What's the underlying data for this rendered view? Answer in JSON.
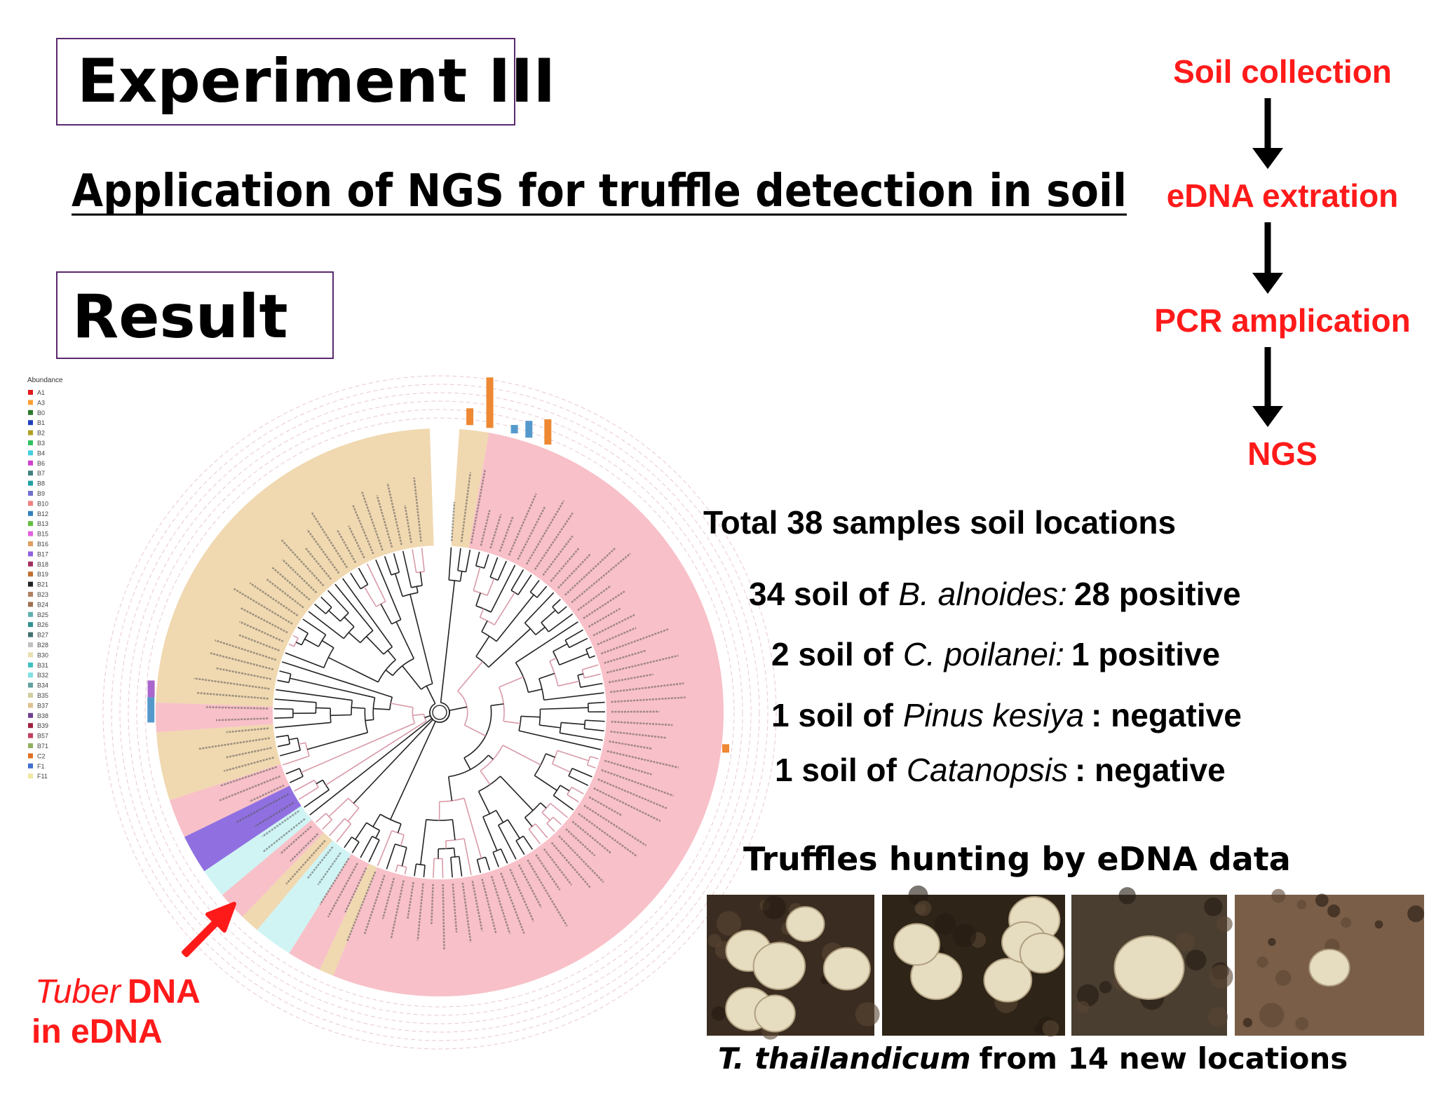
{
  "header": {
    "title": "Experiment III",
    "subtitle": "Application of NGS for truffle detection in soil",
    "result": "Result"
  },
  "workflow": {
    "steps": [
      "Soil collection",
      "eDNA extration",
      "PCR amplication",
      "NGS"
    ]
  },
  "summary": {
    "total": "Total 38 samples soil locations",
    "items": [
      {
        "prefix": "34 soil of",
        "species": "B. alnoides:",
        "suffix": "28 positive"
      },
      {
        "prefix": "2 soil of",
        "species": "C. poilanei:",
        "suffix": "1 positive"
      },
      {
        "prefix": "1 soil of",
        "species": "Pinus kesiya",
        "suffix": ": negative"
      },
      {
        "prefix": "1 soil of",
        "species": "Catanopsis",
        "suffix": ": negative"
      }
    ]
  },
  "tree": {
    "legend_title": "Abundance",
    "legend_items": [
      "A1",
      "A3",
      "B0",
      "B1",
      "B2",
      "B3",
      "B4",
      "B6",
      "B7",
      "B8",
      "B9",
      "B10",
      "B12",
      "B13",
      "B15",
      "B16",
      "B17",
      "B18",
      "B19",
      "B21",
      "B23",
      "B24",
      "B25",
      "B26",
      "B27",
      "B28",
      "B30",
      "B31",
      "B32",
      "B34",
      "B35",
      "B37",
      "B38",
      "B39",
      "B57",
      "B71",
      "C2",
      "F1",
      "F11"
    ],
    "annotation": {
      "species": "Tuber",
      "rest": "DNA",
      "line2": "in eDNA"
    }
  },
  "photos": {
    "title": "Truffles hunting by eDNA data",
    "caption_species": "T. thailandicum",
    "caption_rest": "from 14 new locations"
  }
}
